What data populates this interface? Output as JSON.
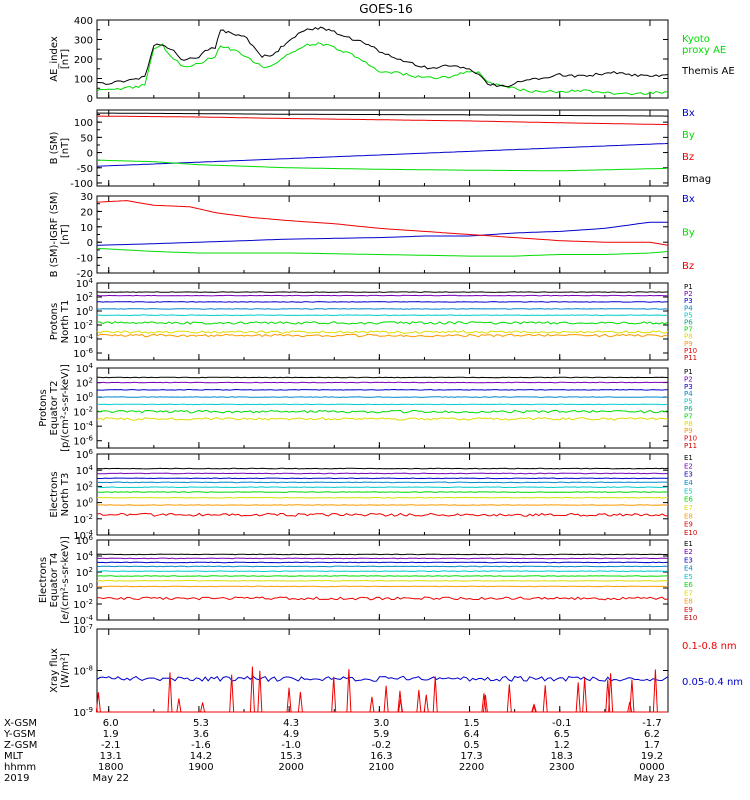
{
  "title": "GOES-16",
  "colors": {
    "black": "#000000",
    "red": "#ee0000",
    "green": "#00dd00",
    "blue": "#0000cc",
    "cyan": "#00cccc",
    "yellow": "#dddd00",
    "orange": "#ff9900",
    "purple": "#7700bb"
  },
  "chart_data": [
    {
      "type": "line",
      "panel": "ae",
      "ylabel": "AE_index\n[nT]",
      "ylim": [
        0,
        400
      ],
      "yscale": "linear",
      "yticks": [
        {
          "v": 0,
          "label": "0"
        },
        {
          "v": 100,
          "label": "100"
        },
        {
          "v": 200,
          "label": "200"
        },
        {
          "v": 300,
          "label": "300"
        },
        {
          "v": 400,
          "label": "400"
        }
      ],
      "series": [
        {
          "name": "Kyoto\nproxy AE",
          "color": "#00dd00",
          "x": [
            17.87,
            18.0,
            18.2,
            18.4,
            18.5,
            18.6,
            18.65,
            18.72,
            18.8,
            18.9,
            19.0,
            19.1,
            19.18,
            19.24,
            19.3,
            19.35,
            19.5,
            19.7,
            19.85,
            20.0,
            20.2,
            20.35,
            20.5,
            20.7,
            20.85,
            21.0,
            21.2,
            21.4,
            21.6,
            21.8,
            22.0,
            22.1,
            22.2,
            22.4,
            22.6,
            22.8,
            23.0,
            23.2,
            23.4,
            23.6,
            23.8,
            24.0,
            24.2
          ],
          "y": [
            40,
            45,
            50,
            65,
            250,
            270,
            230,
            200,
            170,
            160,
            175,
            200,
            210,
            270,
            260,
            250,
            220,
            160,
            170,
            230,
            270,
            280,
            260,
            220,
            180,
            140,
            130,
            110,
            100,
            110,
            140,
            130,
            80,
            60,
            40,
            30,
            35,
            40,
            30,
            25,
            20,
            25,
            30
          ]
        },
        {
          "name": "Themis AE",
          "color": "#000000",
          "x": [
            17.87,
            18.0,
            18.2,
            18.4,
            18.5,
            18.6,
            18.65,
            18.72,
            18.8,
            18.9,
            19.0,
            19.1,
            19.18,
            19.24,
            19.3,
            19.35,
            19.5,
            19.7,
            19.85,
            20.0,
            20.2,
            20.35,
            20.5,
            20.7,
            20.85,
            21.0,
            21.2,
            21.4,
            21.6,
            21.8,
            22.0,
            22.1,
            22.2,
            22.4,
            22.6,
            22.8,
            23.0,
            23.2,
            23.4,
            23.6,
            23.8,
            24.0,
            24.2
          ],
          "y": [
            80,
            75,
            90,
            110,
            270,
            275,
            250,
            240,
            200,
            200,
            210,
            250,
            260,
            350,
            340,
            330,
            320,
            210,
            230,
            300,
            350,
            360,
            340,
            300,
            280,
            240,
            200,
            170,
            150,
            170,
            150,
            120,
            70,
            60,
            90,
            100,
            120,
            110,
            120,
            130,
            120,
            110,
            120
          ]
        }
      ]
    },
    {
      "type": "line",
      "panel": "bsm",
      "ylabel": "B (SM)\n[nT]",
      "ylim": [
        -110,
        140
      ],
      "yscale": "linear",
      "yticks": [
        {
          "v": -100,
          "label": "-100"
        },
        {
          "v": -50,
          "label": "-50"
        },
        {
          "v": 0,
          "label": "0"
        },
        {
          "v": 50,
          "label": "50"
        },
        {
          "v": 100,
          "label": "100"
        }
      ],
      "series": [
        {
          "name": "Bx",
          "color": "#0000cc",
          "x": [
            17.87,
            24.2
          ],
          "y": [
            -45,
            30
          ]
        },
        {
          "name": "By",
          "color": "#00dd00",
          "x": [
            17.87,
            18.5,
            19.0,
            20.0,
            21.0,
            22.0,
            23.0,
            24.2
          ],
          "y": [
            -25,
            -30,
            -40,
            -50,
            -55,
            -58,
            -60,
            -52
          ]
        },
        {
          "name": "Bz",
          "color": "#ee0000",
          "x": [
            17.87,
            19.0,
            20.0,
            21.0,
            22.0,
            23.0,
            24.2
          ],
          "y": [
            120,
            117,
            112,
            108,
            104,
            98,
            92
          ]
        },
        {
          "name": "Bmag",
          "color": "#000000",
          "x": [
            17.87,
            19.0,
            20.0,
            21.0,
            22.0,
            23.0,
            24.2
          ],
          "y": [
            130,
            128,
            126,
            125,
            124,
            122,
            120
          ]
        }
      ]
    },
    {
      "type": "line",
      "panel": "digrf",
      "ylabel": "B (SM)-IGRF (SM)\n[nT]",
      "ylim": [
        -20,
        30
      ],
      "yscale": "linear",
      "yticks": [
        {
          "v": -20,
          "label": "-20"
        },
        {
          "v": -10,
          "label": "-10"
        },
        {
          "v": 0,
          "label": "0"
        },
        {
          "v": 10,
          "label": "10"
        },
        {
          "v": 20,
          "label": "20"
        },
        {
          "v": 30,
          "label": "30"
        }
      ],
      "series": [
        {
          "name": "Bx",
          "color": "#0000cc",
          "x": [
            17.87,
            18.5,
            19.0,
            20.0,
            21.0,
            21.5,
            22.0,
            22.5,
            23.0,
            23.5,
            24.0,
            24.2
          ],
          "y": [
            -2,
            -1,
            0,
            2,
            3,
            4,
            4,
            6,
            7,
            9,
            13,
            13
          ]
        },
        {
          "name": "By",
          "color": "#00dd00",
          "x": [
            17.87,
            18.5,
            19.0,
            20.0,
            21.0,
            22.0,
            22.5,
            23.0,
            23.5,
            24.0,
            24.2
          ],
          "y": [
            -4,
            -6,
            -7,
            -7,
            -8,
            -9,
            -9,
            -8,
            -8,
            -7,
            -6
          ]
        },
        {
          "name": "Bz",
          "color": "#ee0000",
          "x": [
            17.87,
            18.2,
            18.5,
            18.9,
            19.2,
            19.6,
            20.0,
            20.5,
            21.0,
            21.5,
            22.0,
            22.5,
            23.0,
            23.5,
            24.0,
            24.2
          ],
          "y": [
            26,
            27,
            24,
            23,
            19,
            16,
            14,
            12,
            9,
            7,
            5,
            3,
            1,
            0,
            0,
            -2
          ]
        }
      ]
    },
    {
      "type": "line",
      "panel": "prot_n",
      "ylabel": "Protons\nNorth T1",
      "ylim": [
        -7,
        4
      ],
      "yscale": "log",
      "yticks": [
        {
          "v": 4,
          "label": "10^4"
        },
        {
          "v": 2,
          "label": "10^2"
        },
        {
          "v": 0,
          "label": "10^0"
        },
        {
          "v": -2,
          "label": "10^-2"
        },
        {
          "v": -4,
          "label": "10^-4"
        },
        {
          "v": -6,
          "label": "10^-6"
        }
      ],
      "legend": [
        "P1",
        "P2",
        "P3",
        "P4",
        "P5",
        "P6",
        "P7",
        "P8",
        "P9",
        "P10",
        "P11"
      ],
      "legend_colors": [
        "#000000",
        "#7700bb",
        "#0000cc",
        "#0088cc",
        "#00cccc",
        "#00aa88",
        "#00dd00",
        "#dddd00",
        "#ff9900",
        "#ee0000",
        "#cc0000"
      ],
      "series": [
        {
          "name": "P1",
          "color": "#000000",
          "level": 2.7
        },
        {
          "name": "P2",
          "color": "#7700bb",
          "level": 2.2
        },
        {
          "name": "P3",
          "color": "#0000cc",
          "level": 1.3
        },
        {
          "name": "P4",
          "color": "#0088cc",
          "level": 0.3
        },
        {
          "name": "P5",
          "color": "#00cccc",
          "level": -0.6
        },
        {
          "name": "P6",
          "color": "#00dd00",
          "level": -1.7
        },
        {
          "name": "P7",
          "color": "#dddd00",
          "level": -3.0
        },
        {
          "name": "P8",
          "color": "#ff9900",
          "level": -3.5
        }
      ]
    },
    {
      "type": "line",
      "panel": "prot_e",
      "ylabel": "Protons\nEquator T2\n[p/(cm²-s-sr-keV)]",
      "ylim": [
        -7,
        4
      ],
      "yscale": "log",
      "yticks": [
        {
          "v": 4,
          "label": "10^4"
        },
        {
          "v": 2,
          "label": "10^2"
        },
        {
          "v": 0,
          "label": "10^0"
        },
        {
          "v": -2,
          "label": "10^-2"
        },
        {
          "v": -4,
          "label": "10^-4"
        },
        {
          "v": -6,
          "label": "10^-6"
        }
      ],
      "legend": [
        "P1",
        "P2",
        "P3",
        "P4",
        "P5",
        "P6",
        "P7",
        "P8",
        "P9",
        "P10",
        "P11"
      ],
      "legend_colors": [
        "#000000",
        "#7700bb",
        "#0000cc",
        "#0088cc",
        "#00cccc",
        "#00aa88",
        "#00dd00",
        "#dddd00",
        "#ff9900",
        "#ee0000",
        "#cc0000"
      ],
      "series": [
        {
          "name": "P1",
          "color": "#000000",
          "level": 2.7
        },
        {
          "name": "P2",
          "color": "#7700bb",
          "level": 2.0
        },
        {
          "name": "P3",
          "color": "#0000cc",
          "level": 1.0
        },
        {
          "name": "P4",
          "color": "#0088cc",
          "level": 0.0
        },
        {
          "name": "P5",
          "color": "#00cccc",
          "level": -1.0
        },
        {
          "name": "P6",
          "color": "#00dd00",
          "level": -2.0
        },
        {
          "name": "P7",
          "color": "#dddd00",
          "level": -3.0
        }
      ]
    },
    {
      "type": "line",
      "panel": "elec_n",
      "ylabel": "Electrons\nNorth T3",
      "ylim": [
        -4,
        6
      ],
      "yscale": "log",
      "yticks": [
        {
          "v": 6,
          "label": "10^6"
        },
        {
          "v": 4,
          "label": "10^4"
        },
        {
          "v": 2,
          "label": "10^2"
        },
        {
          "v": 0,
          "label": "10^0"
        },
        {
          "v": -2,
          "label": "10^-2"
        },
        {
          "v": -4,
          "label": "10^-4"
        }
      ],
      "legend": [
        "E1",
        "E2",
        "E3",
        "E4",
        "E5",
        "E6",
        "E7",
        "E8",
        "E9",
        "E10"
      ],
      "legend_colors": [
        "#000000",
        "#7700bb",
        "#0000cc",
        "#0088cc",
        "#00cccc",
        "#00dd00",
        "#dddd00",
        "#ff9900",
        "#ee0000",
        "#cc0000"
      ],
      "series": [
        {
          "name": "E1",
          "color": "#000000",
          "level": 4.2
        },
        {
          "name": "E2",
          "color": "#7700bb",
          "level": 3.6
        },
        {
          "name": "E3",
          "color": "#0000cc",
          "level": 3.0
        },
        {
          "name": "E4",
          "color": "#0088cc",
          "level": 2.5
        },
        {
          "name": "E5",
          "color": "#00cccc",
          "level": 1.9
        },
        {
          "name": "E6",
          "color": "#00dd00",
          "level": 1.3
        },
        {
          "name": "E7",
          "color": "#dddd00",
          "level": 0.6
        },
        {
          "name": "E8",
          "color": "#ff9900",
          "level": -0.3
        },
        {
          "name": "E9",
          "color": "#ee0000",
          "level": -1.5
        }
      ]
    },
    {
      "type": "line",
      "panel": "elec_e",
      "ylabel": "Electrons\nEquator T4\n[e/(cm²-s-sr-keV)]",
      "ylim": [
        -4,
        6
      ],
      "yscale": "log",
      "yticks": [
        {
          "v": 6,
          "label": "10^6"
        },
        {
          "v": 4,
          "label": "10^4"
        },
        {
          "v": 2,
          "label": "10^2"
        },
        {
          "v": 0,
          "label": "10^0"
        },
        {
          "v": -2,
          "label": "10^-2"
        },
        {
          "v": -4,
          "label": "10^-4"
        }
      ],
      "legend": [
        "E1",
        "E2",
        "E3",
        "E4",
        "E5",
        "E6",
        "E7",
        "E8",
        "E9",
        "E10"
      ],
      "legend_colors": [
        "#000000",
        "#7700bb",
        "#0000cc",
        "#0088cc",
        "#00cccc",
        "#00dd00",
        "#dddd00",
        "#ff9900",
        "#ee0000",
        "#cc0000"
      ],
      "series": [
        {
          "name": "E1",
          "color": "#000000",
          "level": 4.2
        },
        {
          "name": "E2",
          "color": "#7700bb",
          "level": 3.7
        },
        {
          "name": "E3",
          "color": "#0000cc",
          "level": 3.2
        },
        {
          "name": "E4",
          "color": "#0088cc",
          "level": 2.7
        },
        {
          "name": "E5",
          "color": "#00cccc",
          "level": 2.1
        },
        {
          "name": "E6",
          "color": "#00dd00",
          "level": 1.5
        },
        {
          "name": "E7",
          "color": "#dddd00",
          "level": 0.9
        },
        {
          "name": "E8",
          "color": "#ff9900",
          "level": 0.2
        },
        {
          "name": "E9",
          "color": "#ee0000",
          "level": -1.3
        }
      ]
    },
    {
      "type": "line",
      "panel": "xray",
      "ylabel": "Xray flux\n[W/m²]",
      "ylim": [
        -9,
        -7
      ],
      "yscale": "log",
      "yticks": [
        {
          "v": -7,
          "label": "10^-7"
        },
        {
          "v": -8,
          "label": "10^-8"
        },
        {
          "v": -9,
          "label": "10^-9"
        }
      ],
      "series": [
        {
          "name": "0.1-0.8 nm",
          "color": "#ee0000",
          "level": -9.0
        },
        {
          "name": "0.05-0.4 nm",
          "color": "#0000cc",
          "level": -8.2
        }
      ]
    }
  ],
  "xaxis": {
    "xlim": [
      17.87,
      24.2
    ],
    "tick_hours": [
      18,
      19,
      20,
      21,
      22,
      23,
      24
    ],
    "rows": [
      {
        "label": "X-GSM",
        "values": [
          "6.0",
          "5.3",
          "4.3",
          "3.0",
          "1.5",
          "-0.1",
          "-1.7"
        ]
      },
      {
        "label": "Y-GSM",
        "values": [
          "1.9",
          "3.6",
          "4.9",
          "5.9",
          "6.4",
          "6.5",
          "6.2"
        ]
      },
      {
        "label": "Z-GSM",
        "values": [
          "-2.1",
          "-1.6",
          "-1.0",
          "-0.2",
          "0.5",
          "1.2",
          "1.7"
        ]
      },
      {
        "label": "MLT",
        "values": [
          "13.1",
          "14.2",
          "15.3",
          "16.3",
          "17.3",
          "18.3",
          "19.2"
        ]
      },
      {
        "label": "hhmm",
        "values": [
          "1800",
          "1900",
          "2000",
          "2100",
          "2200",
          "2300",
          "0000"
        ]
      },
      {
        "label": "2019",
        "values": [
          "May 22",
          "",
          "",
          "",
          "",
          "",
          "May 23"
        ]
      }
    ]
  }
}
